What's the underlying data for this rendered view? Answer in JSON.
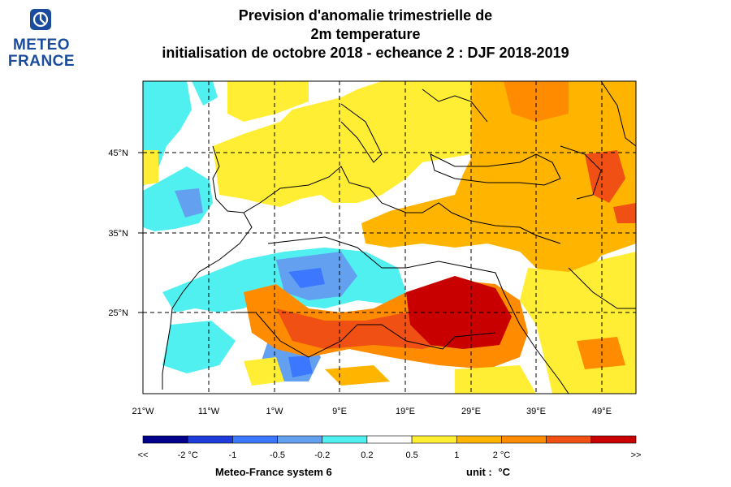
{
  "logo": {
    "line1": "METEO",
    "line2": "FRANCE",
    "mark_color": "#1a4b9c"
  },
  "title": {
    "line1": "Prevision d'anomalie trimestrielle de",
    "line2": "2m temperature",
    "line3": "initialisation de octobre 2018  -  echeance 2 : DJF 2018-2019"
  },
  "map": {
    "lon_labels": [
      "21°W",
      "11°W",
      "1°W",
      "9°E",
      "19°E",
      "29°E",
      "39°E",
      "49°E"
    ],
    "lat_labels": [
      "45°N",
      "35°N",
      "25°N"
    ]
  },
  "colorbar": {
    "colors": [
      "#00008c",
      "#1e3cdc",
      "#3c78ff",
      "#64a0f0",
      "#50f0f0",
      "#ffffff",
      "#ffee33",
      "#ffb400",
      "#ff8c00",
      "#f05014",
      "#c80000"
    ],
    "labels": [
      "<<",
      "-2 °C",
      "-1",
      "-0.5",
      "-0.2",
      "0.2",
      "0.5",
      "1",
      "2 °C",
      ">>"
    ]
  },
  "footer": {
    "system": "Meteo-France system 6",
    "unit_label": "unit :",
    "unit_value": "°C"
  }
}
